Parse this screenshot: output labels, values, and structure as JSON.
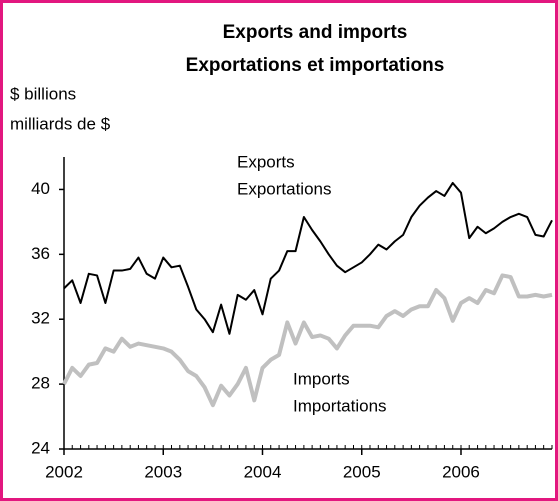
{
  "chart_data": {
    "type": "line",
    "title": [
      "Exports and imports",
      "Exportations et importations"
    ],
    "y_label": [
      "$ billions",
      "milliards de $"
    ],
    "annotations": [
      {
        "text": [
          "Exports",
          "Exportations"
        ],
        "series": 0
      },
      {
        "text": [
          "Imports",
          "Importations"
        ],
        "series": 1
      }
    ],
    "x": [
      2002,
      2002.083,
      2002.167,
      2002.25,
      2002.333,
      2002.417,
      2002.5,
      2002.583,
      2002.667,
      2002.75,
      2002.833,
      2002.917,
      2003,
      2003.083,
      2003.167,
      2003.25,
      2003.333,
      2003.417,
      2003.5,
      2003.583,
      2003.667,
      2003.75,
      2003.833,
      2003.917,
      2004,
      2004.083,
      2004.167,
      2004.25,
      2004.333,
      2004.417,
      2004.5,
      2004.583,
      2004.667,
      2004.75,
      2004.833,
      2004.917,
      2005,
      2005.083,
      2005.167,
      2005.25,
      2005.333,
      2005.417,
      2005.5,
      2005.583,
      2005.667,
      2005.75,
      2005.833,
      2005.917,
      2006,
      2006.083,
      2006.167,
      2006.25,
      2006.333,
      2006.417,
      2006.5,
      2006.583,
      2006.667,
      2006.75,
      2006.833,
      2006.917
    ],
    "series": [
      {
        "name": "Exports",
        "color": "#000000",
        "width": 2,
        "values": [
          33.9,
          34.4,
          33.0,
          34.8,
          34.7,
          33.0,
          35.0,
          35.0,
          35.1,
          35.8,
          34.8,
          34.5,
          35.8,
          35.2,
          35.3,
          34.0,
          32.6,
          32.0,
          31.2,
          32.9,
          31.1,
          33.5,
          33.2,
          33.8,
          32.3,
          34.5,
          35.0,
          36.2,
          36.2,
          38.3,
          37.5,
          36.8,
          36.0,
          35.3,
          34.9,
          35.2,
          35.5,
          36.0,
          36.6,
          36.3,
          36.8,
          37.2,
          38.3,
          39.0,
          39.5,
          39.9,
          39.6,
          40.4,
          39.8,
          37.0,
          37.7,
          37.3,
          37.6,
          38.0,
          38.3,
          38.5,
          38.3,
          37.2,
          37.1,
          38.1
        ]
      },
      {
        "name": "Imports",
        "color": "#c0c0c0",
        "width": 4,
        "values": [
          28.0,
          29.0,
          28.5,
          29.2,
          29.3,
          30.2,
          30.0,
          30.8,
          30.3,
          30.5,
          30.4,
          30.3,
          30.2,
          30.0,
          29.5,
          28.8,
          28.5,
          27.8,
          26.7,
          27.9,
          27.3,
          28.0,
          29.0,
          27.0,
          29.0,
          29.5,
          29.8,
          31.8,
          30.5,
          31.8,
          30.9,
          31.0,
          30.8,
          30.2,
          31.0,
          31.6,
          31.6,
          31.6,
          31.5,
          32.2,
          32.5,
          32.2,
          32.6,
          32.8,
          32.8,
          33.8,
          33.3,
          31.9,
          33.0,
          33.3,
          33.0,
          33.8,
          33.6,
          34.7,
          34.6,
          33.4,
          33.4,
          33.5,
          33.4,
          33.5
        ]
      }
    ],
    "xlim": [
      2002,
      2006.917
    ],
    "xticks": [
      2002,
      2003,
      2004,
      2005,
      2006
    ],
    "ylim": [
      24,
      42
    ],
    "yticks": [
      24,
      28,
      32,
      36,
      40
    ],
    "grid": false
  }
}
